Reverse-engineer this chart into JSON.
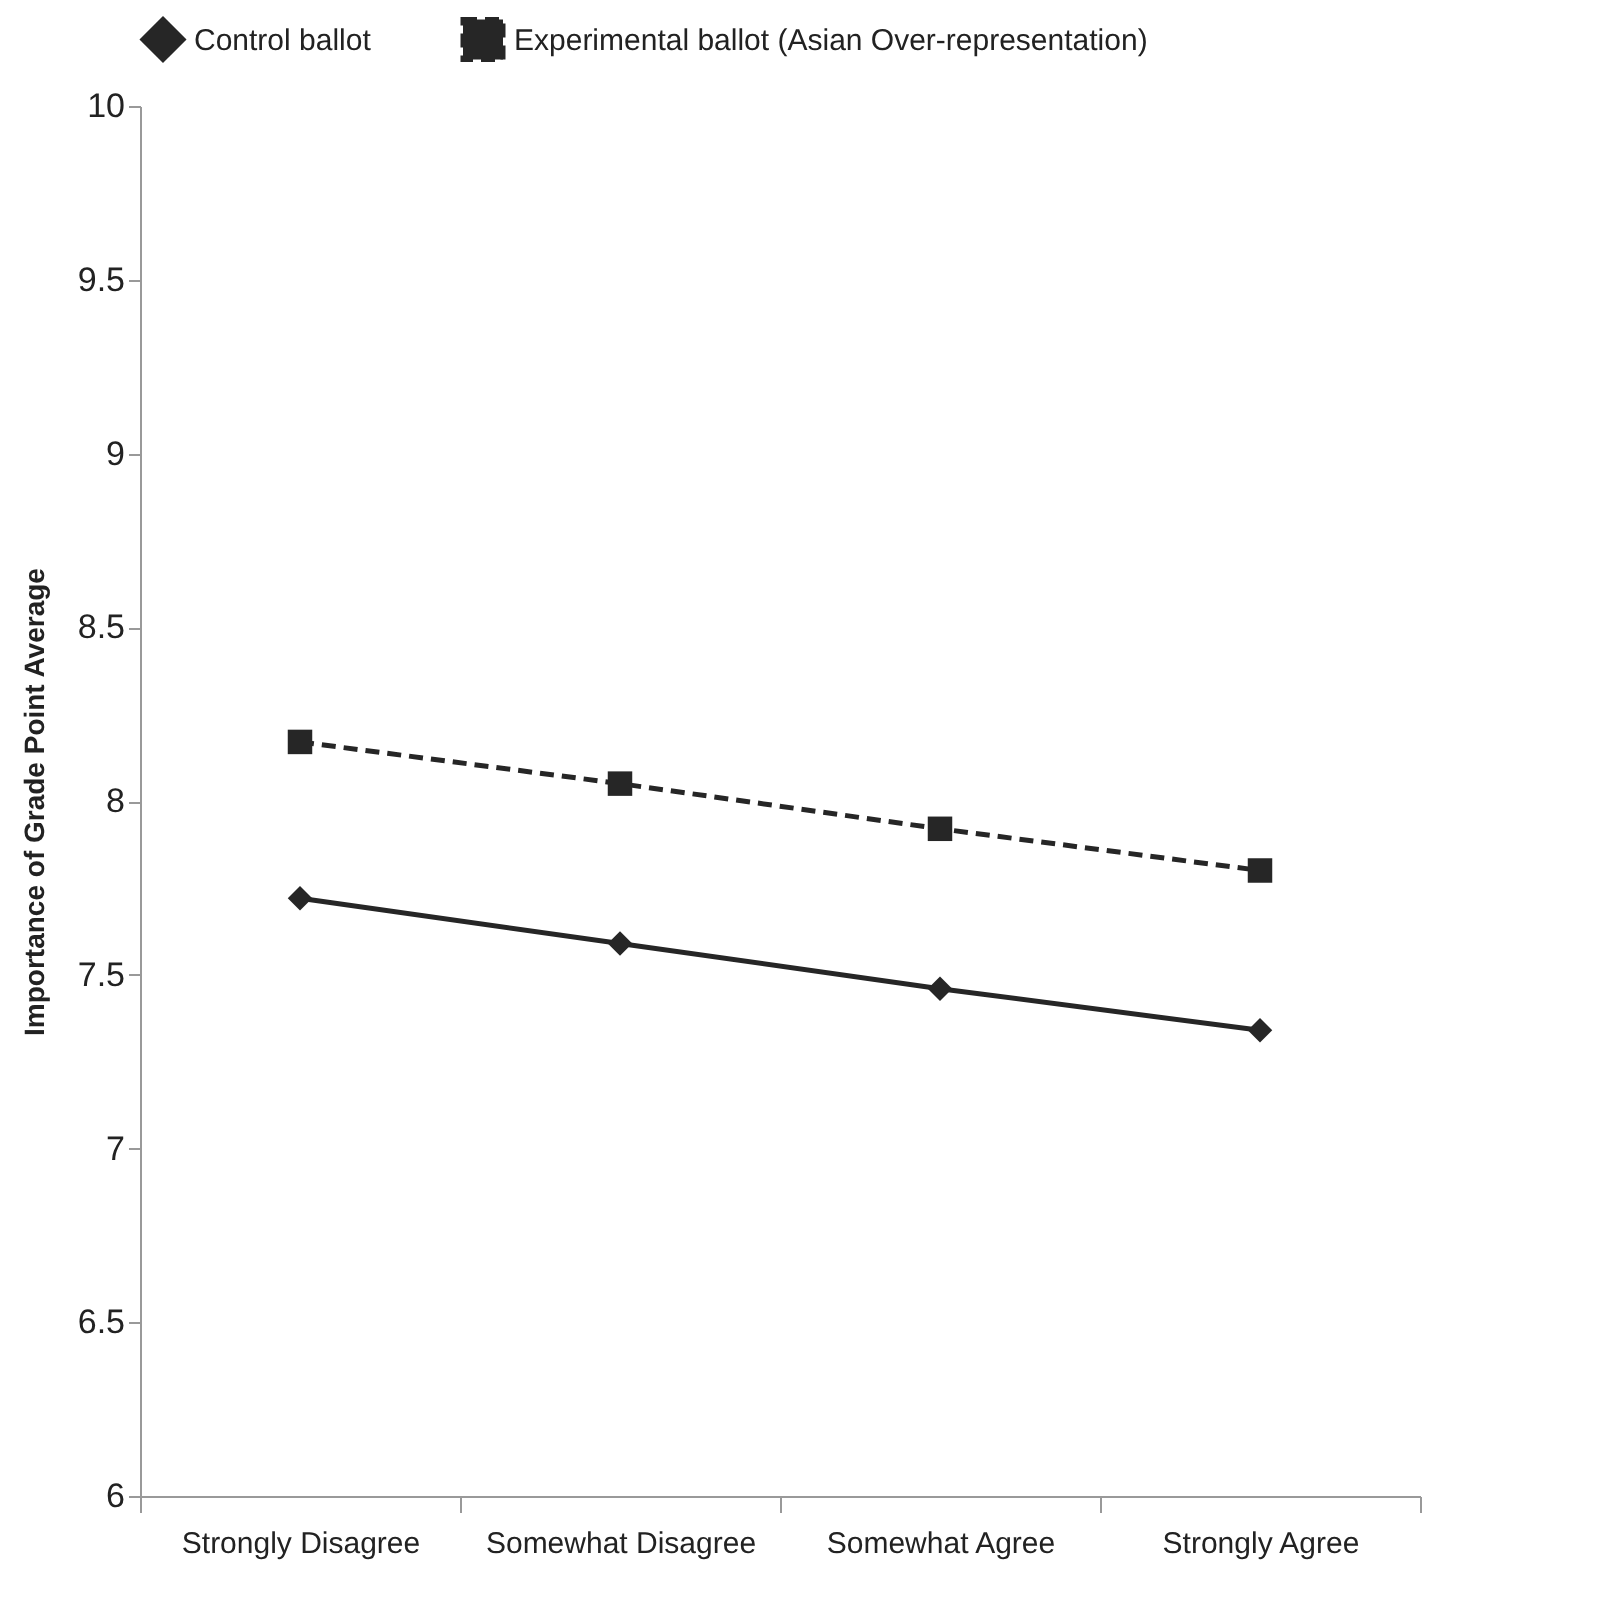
{
  "chart_data": {
    "type": "line",
    "ylabel": "Importance of Grade Point Average",
    "categories": [
      "Strongly Disagree",
      "Somewhat Disagree",
      "Somewhat Agree",
      "Strongly Agree"
    ],
    "series": [
      {
        "name": "Control ballot",
        "color": "#262626",
        "values": [
          7.72,
          7.59,
          7.46,
          7.34
        ],
        "marker": "diamond",
        "line_style": "solid"
      },
      {
        "name": "Experimental ballot (Asian Over-representation)",
        "color": "#262626",
        "values": [
          8.17,
          8.05,
          7.92,
          7.8
        ],
        "marker": "square",
        "line_style": "dashed"
      }
    ],
    "ylim": [
      6,
      10
    ],
    "yticks": [
      6,
      6.5,
      7,
      7.5,
      8,
      8.5,
      9,
      9.5,
      10
    ],
    "grid": false,
    "legend": "top"
  }
}
